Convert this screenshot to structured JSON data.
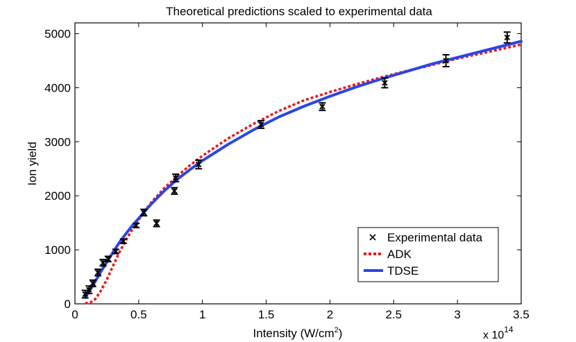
{
  "chart_data": {
    "type": "line",
    "title": "Theoretical predictions scaled to experimental data",
    "xlabel": "Intensity (W/cm",
    "xlabel_sup": "2",
    "xlabel_end": ")",
    "ylabel": "Ion yield",
    "x_multiplier": "x 10",
    "x_multiplier_exp": "14",
    "xlim": [
      0,
      3.5
    ],
    "ylim": [
      0,
      5200
    ],
    "x_ticks": [
      0,
      0.5,
      1,
      1.5,
      2,
      2.5,
      3,
      3.5
    ],
    "x_tick_labels": [
      "0",
      "0.5",
      "1",
      "1.5",
      "2",
      "2.5",
      "3",
      "3.5"
    ],
    "y_ticks": [
      0,
      1000,
      2000,
      3000,
      4000,
      5000
    ],
    "y_tick_labels": [
      "0",
      "1000",
      "2000",
      "3000",
      "4000",
      "5000"
    ],
    "legend_position": "bottom-right",
    "series": [
      {
        "name": "Experimental data",
        "kind": "scatter",
        "color": "#000000",
        "points": [
          {
            "x": 0.08,
            "y": 180,
            "err": 70
          },
          {
            "x": 0.11,
            "y": 260,
            "err": 70
          },
          {
            "x": 0.14,
            "y": 380,
            "err": 60
          },
          {
            "x": 0.18,
            "y": 580,
            "err": 60
          },
          {
            "x": 0.22,
            "y": 760,
            "err": 60
          },
          {
            "x": 0.26,
            "y": 830,
            "err": 50
          },
          {
            "x": 0.32,
            "y": 970,
            "err": 40
          },
          {
            "x": 0.38,
            "y": 1160,
            "err": 40
          },
          {
            "x": 0.48,
            "y": 1450,
            "err": 40
          },
          {
            "x": 0.54,
            "y": 1690,
            "err": 60
          },
          {
            "x": 0.64,
            "y": 1490,
            "err": 60
          },
          {
            "x": 0.78,
            "y": 2090,
            "err": 60
          },
          {
            "x": 0.79,
            "y": 2330,
            "err": 70
          },
          {
            "x": 0.97,
            "y": 2580,
            "err": 80
          },
          {
            "x": 1.46,
            "y": 3320,
            "err": 70
          },
          {
            "x": 1.94,
            "y": 3650,
            "err": 70
          },
          {
            "x": 2.43,
            "y": 4090,
            "err": 90
          },
          {
            "x": 2.91,
            "y": 4500,
            "err": 110
          },
          {
            "x": 3.39,
            "y": 4930,
            "err": 100
          }
        ]
      },
      {
        "name": "ADK",
        "kind": "line",
        "color": "#e8191c",
        "dash": "dotted",
        "x": [
          0.08,
          0.12,
          0.16,
          0.2,
          0.25,
          0.3,
          0.35,
          0.4,
          0.45,
          0.5,
          0.55,
          0.6,
          0.7,
          0.8,
          0.9,
          1.0,
          1.2,
          1.4,
          1.6,
          1.8,
          2.0,
          2.2,
          2.4,
          2.6,
          2.8,
          3.0,
          3.2,
          3.5
        ],
        "y": [
          10,
          25,
          90,
          230,
          450,
          710,
          960,
          1180,
          1380,
          1560,
          1730,
          1880,
          2140,
          2360,
          2560,
          2740,
          3060,
          3330,
          3570,
          3770,
          3920,
          4060,
          4190,
          4310,
          4420,
          4540,
          4640,
          4800
        ]
      },
      {
        "name": "TDSE",
        "kind": "line",
        "color": "#2a45e8",
        "dash": "solid",
        "x": [
          0.08,
          0.12,
          0.16,
          0.2,
          0.25,
          0.3,
          0.35,
          0.4,
          0.45,
          0.5,
          0.55,
          0.6,
          0.7,
          0.8,
          0.9,
          1.0,
          1.2,
          1.4,
          1.6,
          1.8,
          2.0,
          2.2,
          2.4,
          2.6,
          2.8,
          3.0,
          3.2,
          3.5
        ],
        "y": [
          120,
          260,
          420,
          580,
          770,
          960,
          1140,
          1300,
          1450,
          1580,
          1720,
          1850,
          2090,
          2300,
          2480,
          2650,
          2950,
          3220,
          3460,
          3660,
          3840,
          4010,
          4160,
          4300,
          4440,
          4560,
          4680,
          4860
        ]
      }
    ]
  }
}
